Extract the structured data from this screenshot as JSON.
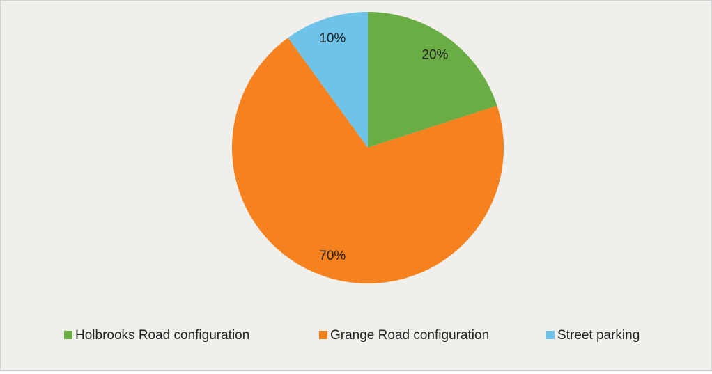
{
  "chart_data": {
    "type": "pie",
    "categories": [
      "Holbrooks Road configuration",
      "Grange Road configuration",
      "Street parking"
    ],
    "values": [
      20,
      70,
      10
    ],
    "value_labels": [
      "20%",
      "70%",
      "10%"
    ],
    "colors": [
      "#6aad45",
      "#f5821f",
      "#6fc3e8"
    ],
    "legend": "bottom"
  }
}
